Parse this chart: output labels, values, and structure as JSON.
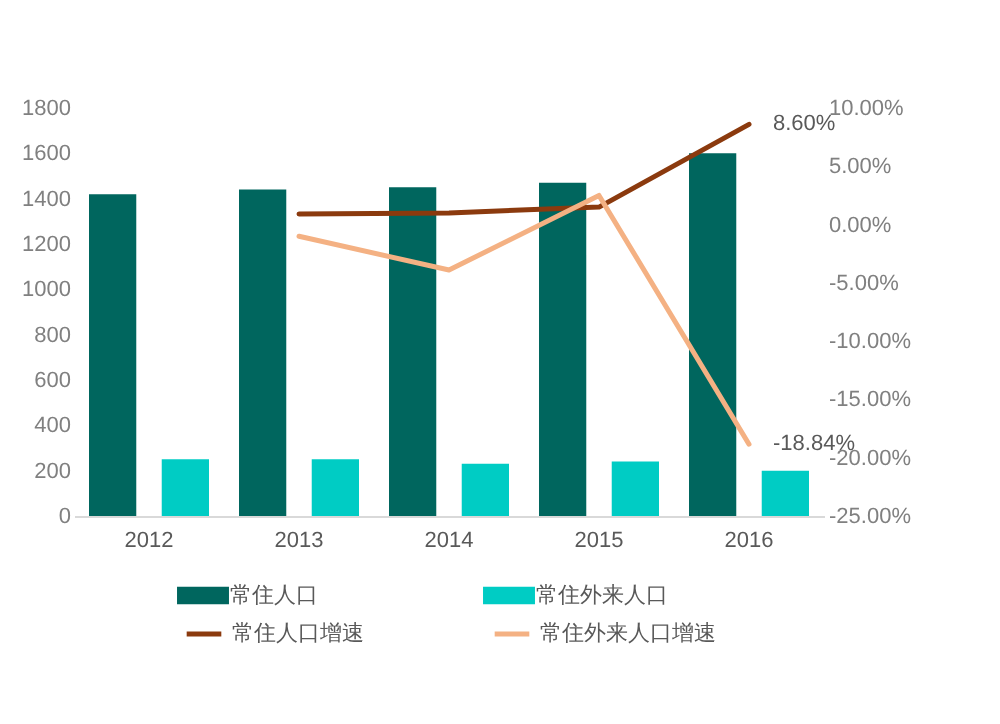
{
  "chart_data": {
    "type": "bar",
    "categories": [
      "2012",
      "2013",
      "2014",
      "2015",
      "2016"
    ],
    "series": [
      {
        "name": "常住人口",
        "color": "#00665e",
        "values": [
          1420,
          1440,
          1450,
          1470,
          1600
        ]
      },
      {
        "name": "常住外来人口",
        "color": "#00ccc4",
        "values": [
          250,
          250,
          230,
          240,
          200
        ]
      },
      {
        "name": "常住人口增速",
        "type": "line",
        "axis": "y2",
        "color": "#8b3a0e",
        "values": [
          null,
          0.9,
          1.0,
          1.5,
          8.6
        ],
        "value_labels": [
          null,
          null,
          null,
          null,
          "8.60%"
        ]
      },
      {
        "name": "常住外来人口增速",
        "type": "line",
        "axis": "y2",
        "color": "#f4b183",
        "values": [
          null,
          -1.0,
          -3.9,
          2.5,
          -18.84
        ],
        "value_labels": [
          null,
          null,
          null,
          null,
          "-18.84%"
        ]
      }
    ],
    "ylim": [
      0,
      1800
    ],
    "yticks": [
      0,
      200,
      400,
      600,
      800,
      1000,
      1200,
      1400,
      1600,
      1800
    ],
    "y2lim": [
      -25,
      10
    ],
    "y2ticks": [
      {
        "value": -25,
        "label": "-25.00%"
      },
      {
        "value": -20,
        "label": "-20.00%"
      },
      {
        "value": -15,
        "label": "-15.00%"
      },
      {
        "value": -10,
        "label": "-10.00%"
      },
      {
        "value": -5,
        "label": "-5.00%"
      },
      {
        "value": 0,
        "label": "0.00%"
      },
      {
        "value": 5,
        "label": "5.00%"
      },
      {
        "value": 10,
        "label": "10.00%"
      }
    ],
    "legend": "bottom"
  }
}
